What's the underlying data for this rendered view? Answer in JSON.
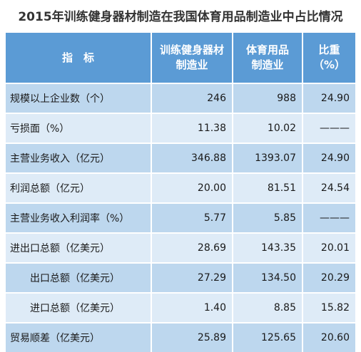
{
  "title": "2015年训练健身器材制造在我国体育用品制造业中占比情况",
  "headers": [
    {
      "lines": [
        "指　标"
      ]
    },
    {
      "lines": [
        "训练健身器材",
        "制造业"
      ]
    },
    {
      "lines": [
        "体育用品",
        "制造业"
      ]
    },
    {
      "lines": [
        "比重",
        "（%）"
      ]
    }
  ],
  "rows": [
    {
      "indicator": "规模以上企业数（个）",
      "fitness": "246",
      "sports": "988",
      "ratio": "24.90"
    },
    {
      "indicator": "亏损面（%）",
      "fitness": "11.38",
      "sports": "10.02",
      "ratio": "———"
    },
    {
      "indicator": "主营业务收入（亿元）",
      "fitness": "346.88",
      "sports": "1393.07",
      "ratio": "24.90"
    },
    {
      "indicator": "利润总额（亿元）",
      "fitness": "20.00",
      "sports": "81.51",
      "ratio": "24.54"
    },
    {
      "indicator": "主营业务收入利润率（%）",
      "fitness": "5.77",
      "sports": "5.85",
      "ratio": "———"
    },
    {
      "indicator": "进出口总额（亿美元）",
      "fitness": "28.69",
      "sports": "143.35",
      "ratio": "20.01"
    },
    {
      "indicator": "出口总额（亿美元）",
      "fitness": "27.29",
      "sports": "134.50",
      "ratio": "20.29"
    },
    {
      "indicator": "进口总额（亿美元）",
      "fitness": "1.40",
      "sports": "8.85",
      "ratio": "15.82"
    },
    {
      "indicator": "贸易顺差（亿美元）",
      "fitness": "25.89",
      "sports": "125.65",
      "ratio": "20.60"
    }
  ],
  "colors": {
    "header_bg": "#5b9bd5",
    "row_dark": "#bdd7ee",
    "row_light": "#deebf7",
    "title": "#333333"
  }
}
